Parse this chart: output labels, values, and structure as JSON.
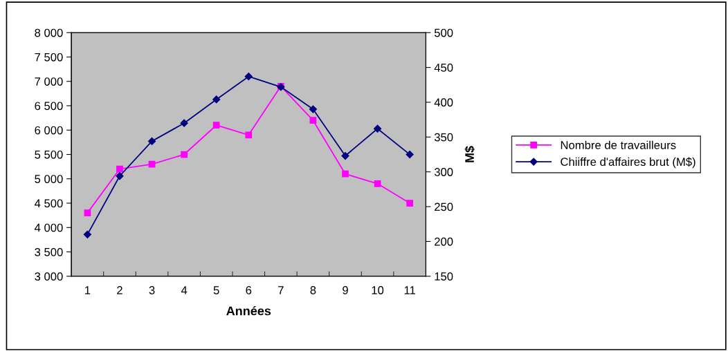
{
  "chart_data": {
    "type": "line",
    "xlabel": "Années",
    "y2label": "M$",
    "categories": [
      "1",
      "2",
      "3",
      "4",
      "5",
      "6",
      "7",
      "8",
      "9",
      "10",
      "11"
    ],
    "series": [
      {
        "name": "Nombre de travailleurs",
        "color": "#ff00ff",
        "marker": "square",
        "values": [
          4300,
          5200,
          5300,
          5500,
          6100,
          5900,
          6900,
          6200,
          5100,
          4900,
          4500
        ]
      },
      {
        "name": "Chiiffre d'affaires brut (M$)",
        "color": "#000080",
        "marker": "diamond",
        "axis": "y2",
        "values": [
          210,
          294,
          344,
          370,
          404,
          437,
          422,
          390,
          323,
          362,
          325
        ]
      }
    ],
    "ylim": [
      3000,
      8000
    ],
    "yticks": [
      {
        "value": 3000,
        "label": "3 000"
      },
      {
        "value": 3500,
        "label": "3 500"
      },
      {
        "value": 4000,
        "label": "4 000"
      },
      {
        "value": 4500,
        "label": "4 500"
      },
      {
        "value": 5000,
        "label": "5 000"
      },
      {
        "value": 5500,
        "label": "5 500"
      },
      {
        "value": 6000,
        "label": "6 000"
      },
      {
        "value": 6500,
        "label": "6 500"
      },
      {
        "value": 7000,
        "label": "7 000"
      },
      {
        "value": 7500,
        "label": "7 500"
      },
      {
        "value": 8000,
        "label": "8 000"
      }
    ],
    "y2lim": [
      150,
      500
    ],
    "y2ticks": [
      150,
      200,
      250,
      300,
      350,
      400,
      450,
      500
    ],
    "grid": false,
    "legend": "right",
    "line_style": "solid"
  }
}
